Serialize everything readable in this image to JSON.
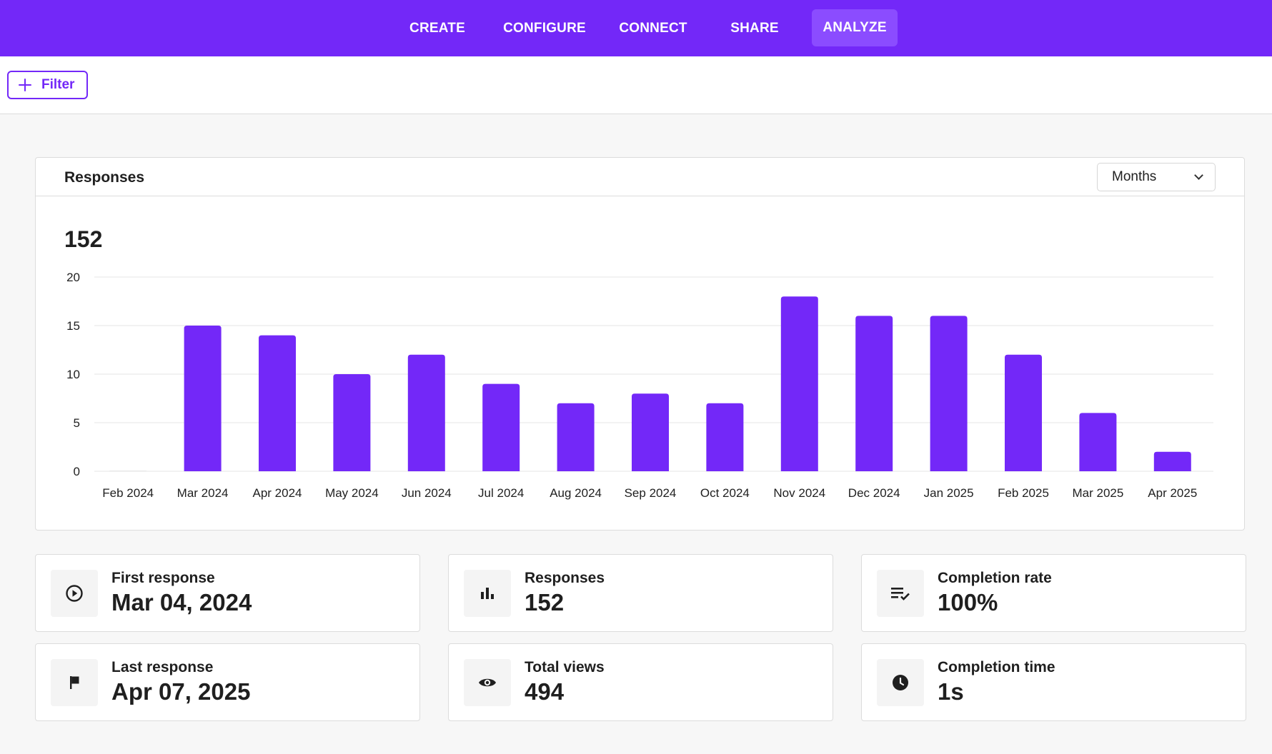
{
  "nav": {
    "tabs": [
      {
        "label": "CREATE"
      },
      {
        "label": "CONFIGURE"
      },
      {
        "label": "CONNECT"
      },
      {
        "label": "SHARE"
      },
      {
        "label": "ANALYZE",
        "active": true
      }
    ]
  },
  "filter": {
    "label": "Filter"
  },
  "responses_card": {
    "title": "Responses",
    "period_select": "Months",
    "total": "152"
  },
  "chart_data": {
    "type": "bar",
    "categories": [
      "Feb 2024",
      "Mar 2024",
      "Apr 2024",
      "May 2024",
      "Jun 2024",
      "Jul 2024",
      "Aug 2024",
      "Sep 2024",
      "Oct 2024",
      "Nov 2024",
      "Dec 2024",
      "Jan 2025",
      "Feb 2025",
      "Mar 2025",
      "Apr 2025"
    ],
    "values": [
      0,
      15,
      14,
      10,
      12,
      9,
      7,
      8,
      7,
      18,
      16,
      16,
      12,
      6,
      2
    ],
    "yticks": [
      0,
      5,
      10,
      15,
      20
    ],
    "ylim": [
      0,
      20
    ],
    "grid": true,
    "bar_color": "#7328f8"
  },
  "stats": [
    {
      "label": "First response",
      "value": "Mar 04, 2024",
      "icon": "play-circle-icon"
    },
    {
      "label": "Responses",
      "value": "152",
      "icon": "bar-chart-icon"
    },
    {
      "label": "Completion rate",
      "value": "100%",
      "icon": "list-check-icon"
    },
    {
      "label": "Last response",
      "value": "Apr 07, 2025",
      "icon": "flag-icon"
    },
    {
      "label": "Total views",
      "value": "494",
      "icon": "eye-icon"
    },
    {
      "label": "Completion time",
      "value": "1s",
      "icon": "clock-icon"
    }
  ],
  "colors": {
    "accent": "#7328f8",
    "nav_active": "#8b4cff"
  }
}
